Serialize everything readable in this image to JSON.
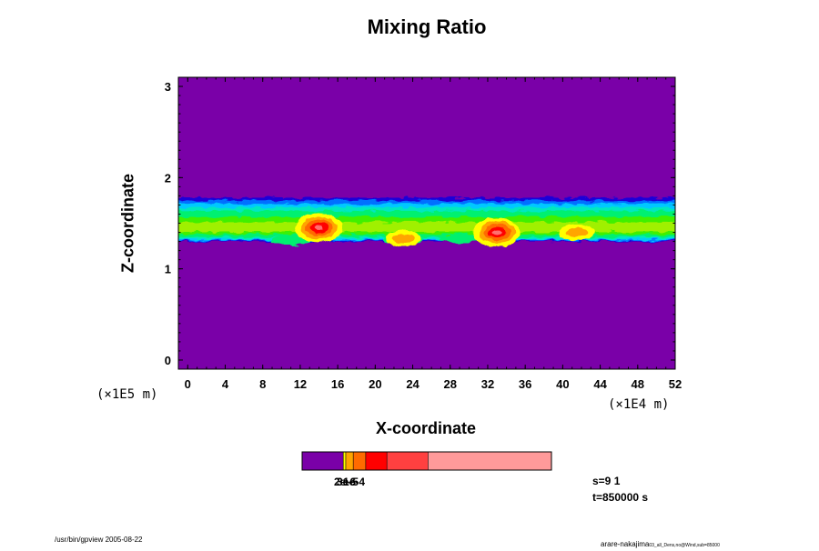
{
  "chart_data": {
    "type": "heatmap",
    "title": "Mixing Ratio",
    "xlabel": "X-coordinate",
    "ylabel": "Z-coordinate",
    "x_unit": "(×1E4 m)",
    "y_unit": "(×1E5 m)",
    "xlim": [
      -1,
      52
    ],
    "ylim": [
      -0.1,
      3.1
    ],
    "x_ticks": [
      "0",
      "4",
      "8",
      "12",
      "16",
      "20",
      "24",
      "28",
      "32",
      "36",
      "40",
      "44",
      "48",
      "52"
    ],
    "y_ticks": [
      "0",
      "1",
      "2",
      "3"
    ],
    "background_color": "#7a00a8",
    "layer": {
      "z_bottom": 1.3,
      "z_top": 1.78
    },
    "hotspots": [
      {
        "x": 14,
        "z": 1.45,
        "level": "high"
      },
      {
        "x": 33,
        "z": 1.4,
        "level": "high"
      },
      {
        "x": 41.5,
        "z": 1.4,
        "level": "mid"
      },
      {
        "x": 23,
        "z": 1.33,
        "level": "mid"
      }
    ],
    "colorbar": {
      "colors": [
        "#7a00a8",
        "#ffff00",
        "#ffa500",
        "#ff6a00",
        "#ff0000",
        "#ff4040",
        "#ff9a9a"
      ],
      "fractions": [
        0.165,
        0.01,
        0.03,
        0.05,
        0.085,
        0.165,
        0.495
      ],
      "labels": [
        "2e-6",
        "3e-5",
        "1e-4"
      ]
    },
    "stats": [
      "s=9 1",
      "t=850000 s"
    ]
  },
  "footer": {
    "left": "/usr/bin/gpview 2005-08-22",
    "right_main": "arare-nakajima",
    "right_small": "03_all_Dens,no@Wind,sub=85000"
  }
}
